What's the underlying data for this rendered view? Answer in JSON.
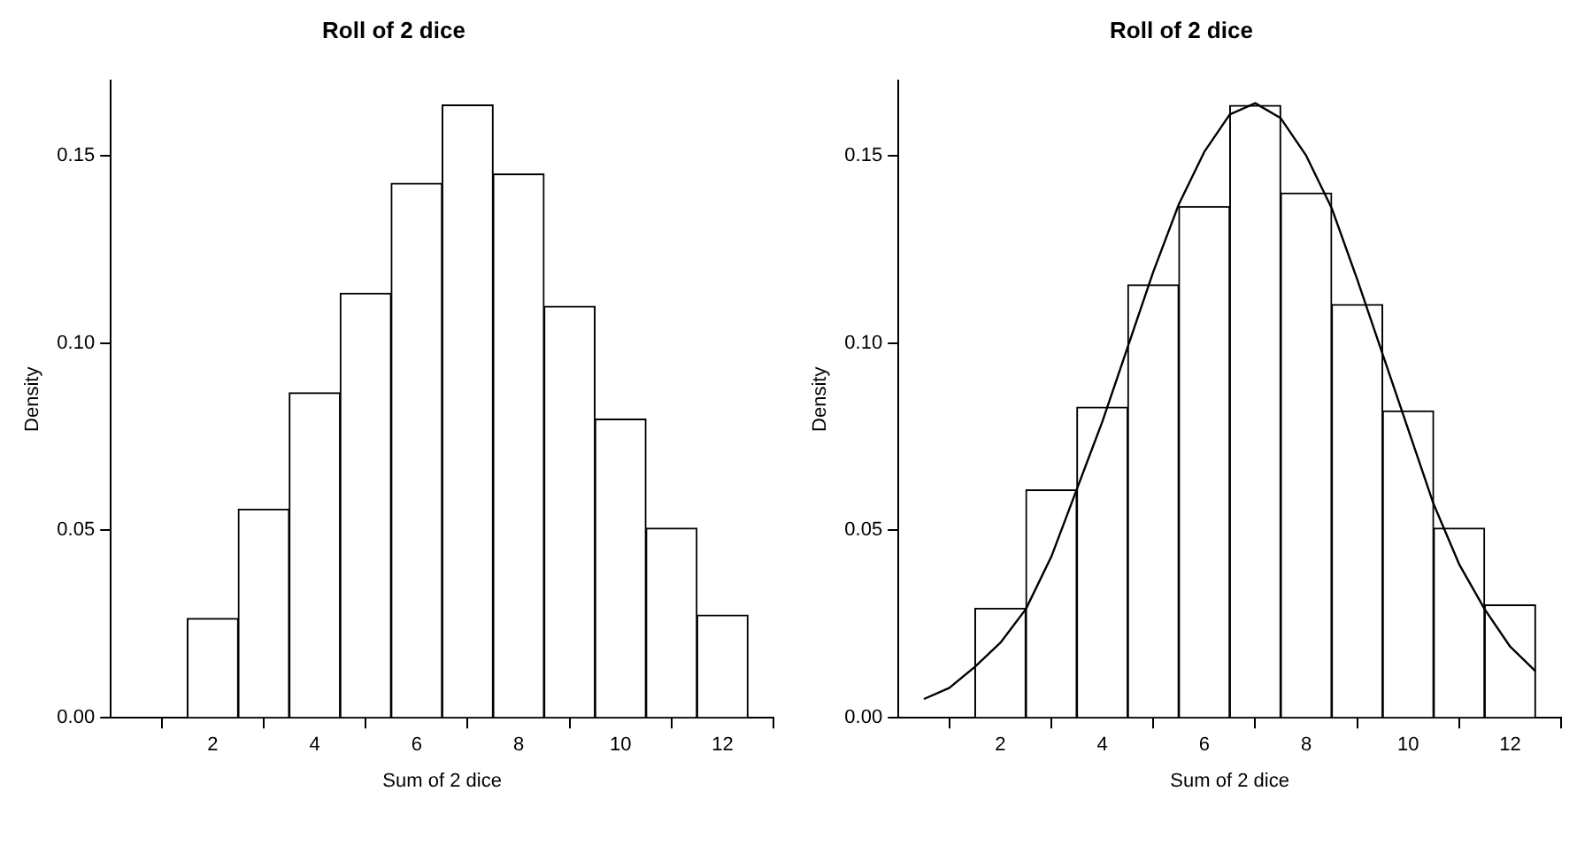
{
  "chart_data": [
    {
      "type": "histogram",
      "title": "Roll of 2 dice",
      "xlabel": "Sum of 2 dice",
      "ylabel": "Density",
      "bins": [
        1.5,
        2.5,
        3.5,
        4.5,
        5.5,
        6.5,
        7.5,
        8.5,
        9.5,
        10.5,
        11.5,
        12.5
      ],
      "values": [
        0.0265,
        0.0557,
        0.0867,
        0.1133,
        0.1426,
        0.1635,
        0.1451,
        0.1098,
        0.0797,
        0.0506,
        0.0274
      ],
      "color": "#ffffff",
      "xlim": [
        0,
        13
      ],
      "xticks": [
        2,
        4,
        6,
        8,
        10,
        12
      ],
      "ylim": [
        0,
        0.17
      ],
      "yticks": [
        {
          "value": 0,
          "label": "0.00"
        },
        {
          "value": 0.05,
          "label": "0.05"
        },
        {
          "value": 0.1,
          "label": "0.10"
        },
        {
          "value": 0.15,
          "label": "0.15"
        }
      ],
      "grid": false
    },
    {
      "type": "histogram",
      "title": "Roll of 2 dice",
      "xlabel": "Sum of 2 dice",
      "ylabel": "Density",
      "bins": [
        1.5,
        2.5,
        3.5,
        4.5,
        5.5,
        6.5,
        7.5,
        8.5,
        9.5,
        10.5,
        11.5,
        12.5
      ],
      "values": [
        0.0292,
        0.0608,
        0.0829,
        0.1155,
        0.1364,
        0.1634,
        0.14,
        0.1103,
        0.0819,
        0.0506,
        0.0301
      ],
      "color": "#ffffff",
      "series": [
        {
          "type": "line",
          "color": "#000000",
          "x": [
            0.5,
            1,
            1.5,
            2,
            2.5,
            3,
            3.5,
            4,
            4.5,
            5,
            5.5,
            6,
            6.5,
            7,
            7.5,
            8,
            8.5,
            9,
            9.5,
            10,
            10.5,
            11,
            11.5,
            12,
            12.5
          ],
          "values": [
            0.005,
            0.008,
            0.0136,
            0.02,
            0.029,
            0.043,
            0.061,
            0.079,
            0.099,
            0.119,
            0.137,
            0.151,
            0.161,
            0.164,
            0.16,
            0.15,
            0.136,
            0.117,
            0.097,
            0.077,
            0.057,
            0.041,
            0.029,
            0.019,
            0.0124
          ]
        }
      ],
      "xlim": [
        0,
        13
      ],
      "xticks": [
        2,
        4,
        6,
        8,
        10,
        12
      ],
      "ylim": [
        0,
        0.17
      ],
      "yticks": [
        {
          "value": 0,
          "label": "0.00"
        },
        {
          "value": 0.05,
          "label": "0.05"
        },
        {
          "value": 0.1,
          "label": "0.10"
        },
        {
          "value": 0.15,
          "label": "0.15"
        }
      ],
      "grid": false
    }
  ]
}
